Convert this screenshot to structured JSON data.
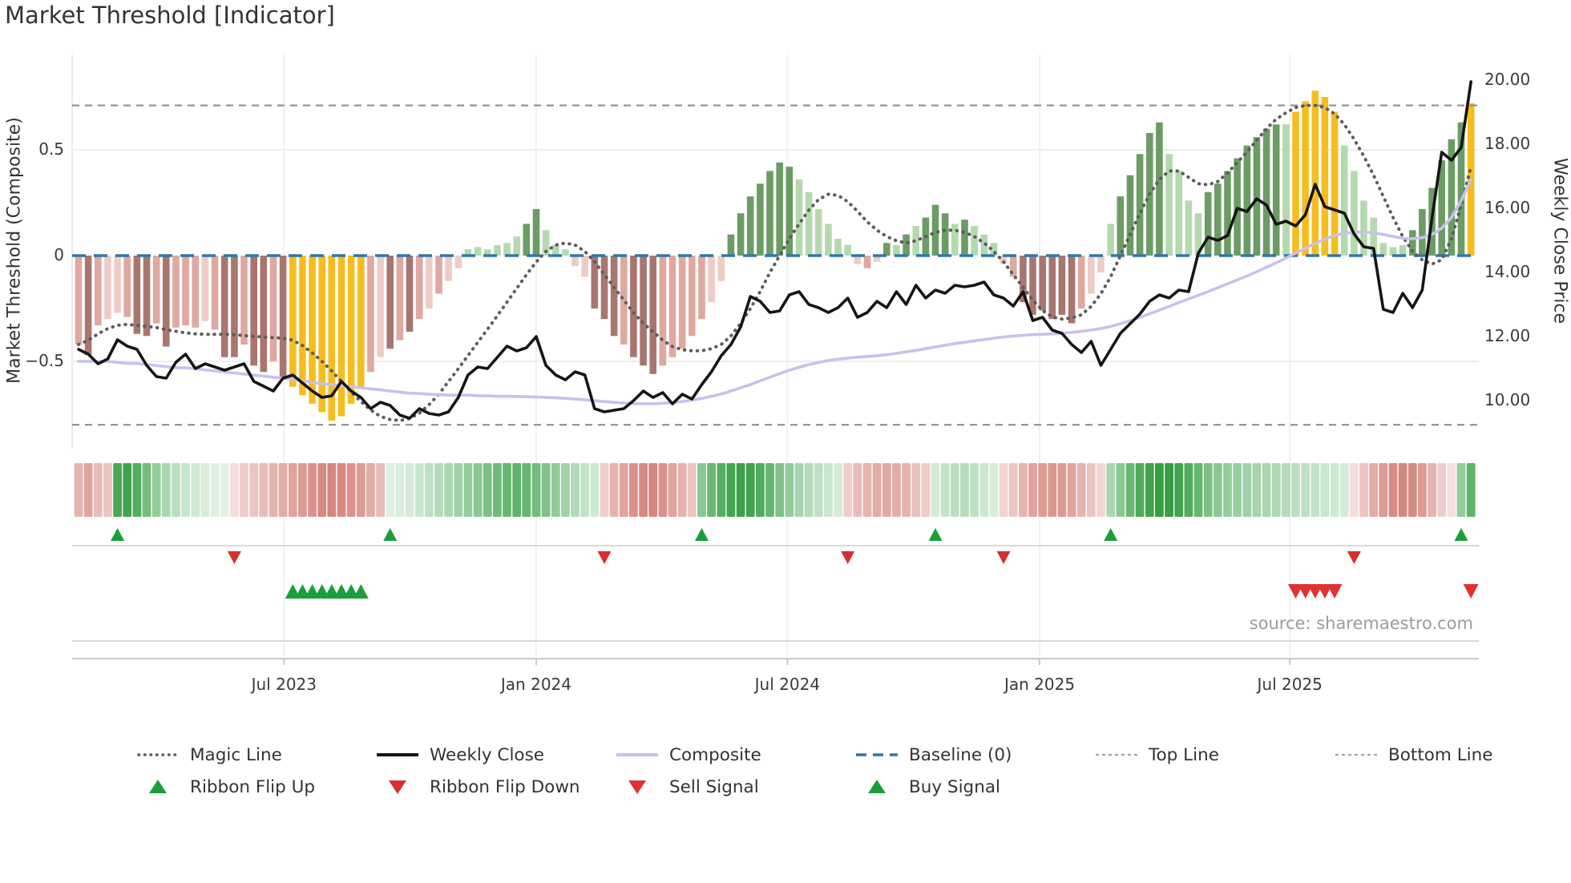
{
  "title": "Market Threshold [Indicator]",
  "source_credit": "source: sharemaestro.com",
  "axes": {
    "left_title": "Market Threshold (Composite)",
    "right_title": "Weekly Close Price",
    "left_ticks": [
      {
        "label": "0.5",
        "v": 0.5
      },
      {
        "label": "0",
        "v": 0.0
      },
      {
        "label": "−0.5",
        "v": -0.5
      }
    ],
    "right_ticks": [
      {
        "label": "20.00",
        "p": 20
      },
      {
        "label": "18.00",
        "p": 18
      },
      {
        "label": "16.00",
        "p": 16
      },
      {
        "label": "14.00",
        "p": 14
      },
      {
        "label": "12.00",
        "p": 12
      },
      {
        "label": "10.00",
        "p": 10
      }
    ]
  },
  "legend": {
    "row1": [
      {
        "label": "Magic Line",
        "swatch": "dotted-gray-line"
      },
      {
        "label": "Weekly Close",
        "swatch": "solid-black-line"
      },
      {
        "label": "Composite",
        "swatch": "solid-lavender-line"
      },
      {
        "label": "Baseline (0)",
        "swatch": "dashed-blue-line"
      },
      {
        "label": "Top Line",
        "swatch": "dashed-gray-line"
      },
      {
        "label": "Bottom Line",
        "swatch": "dashed-gray-line"
      }
    ],
    "row2": [
      {
        "label": "Ribbon Flip Up",
        "swatch": "green-up-triangle"
      },
      {
        "label": "Ribbon Flip Down",
        "swatch": "red-down-triangle"
      },
      {
        "label": "Sell Signal",
        "swatch": "red-down-triangle"
      },
      {
        "label": "Buy Signal",
        "swatch": "green-up-triangle"
      }
    ]
  },
  "chart_data": {
    "type": "bar",
    "weeks": 144,
    "x_ticks": [
      {
        "label": "Jul 2023",
        "i": 21.1
      },
      {
        "label": "Jan 2024",
        "i": 47.0
      },
      {
        "label": "Jul 2024",
        "i": 72.8
      },
      {
        "label": "Jan 2025",
        "i": 98.7
      },
      {
        "label": "Jul 2025",
        "i": 124.4
      }
    ],
    "ylim_left": [
      -0.9,
      0.9
    ],
    "ylim_right": [
      9,
      21
    ],
    "baseline": 0,
    "top_line": 0.71,
    "bottom_line": -0.8,
    "threshold_bars": {
      "values": [
        -0.42,
        -0.47,
        -0.33,
        -0.3,
        -0.27,
        -0.29,
        -0.37,
        -0.38,
        -0.32,
        -0.43,
        -0.34,
        -0.33,
        -0.34,
        -0.31,
        -0.35,
        -0.48,
        -0.48,
        -0.42,
        -0.52,
        -0.55,
        -0.5,
        -0.58,
        -0.62,
        -0.66,
        -0.7,
        -0.74,
        -0.78,
        -0.76,
        -0.7,
        -0.63,
        -0.55,
        -0.48,
        -0.44,
        -0.4,
        -0.36,
        -0.3,
        -0.25,
        -0.18,
        -0.12,
        -0.06,
        0.03,
        0.04,
        0.03,
        0.05,
        0.06,
        0.09,
        0.15,
        0.22,
        0.12,
        0.05,
        0.03,
        -0.05,
        -0.1,
        -0.25,
        -0.3,
        -0.38,
        -0.42,
        -0.48,
        -0.52,
        -0.56,
        -0.52,
        -0.48,
        -0.44,
        -0.38,
        -0.3,
        -0.22,
        -0.12,
        0.1,
        0.2,
        0.28,
        0.34,
        0.4,
        0.44,
        0.42,
        0.36,
        0.3,
        0.22,
        0.15,
        0.08,
        0.05,
        -0.04,
        -0.06,
        -0.03,
        0.06,
        0.05,
        0.1,
        0.14,
        0.18,
        0.24,
        0.2,
        0.15,
        0.17,
        0.14,
        0.1,
        0.06,
        -0.04,
        -0.1,
        -0.22,
        -0.28,
        -0.26,
        -0.3,
        -0.28,
        -0.32,
        -0.25,
        -0.18,
        -0.08,
        0.15,
        0.28,
        0.38,
        0.48,
        0.58,
        0.63,
        0.48,
        0.4,
        0.26,
        0.2,
        0.3,
        0.34,
        0.4,
        0.46,
        0.52,
        0.56,
        0.6,
        0.62,
        0.62,
        0.68,
        0.73,
        0.78,
        0.75,
        0.68,
        0.52,
        0.4,
        0.26,
        0.18,
        0.06,
        0.04,
        0.05,
        0.12,
        0.22,
        0.32,
        0.45,
        0.55,
        0.63,
        0.72
      ],
      "color_codes": [
        "pk",
        "mv",
        "pk",
        "pl",
        "pl",
        "pk",
        "mv",
        "mv",
        "pk",
        "mv",
        "pk",
        "pk",
        "pk",
        "pl",
        "pk",
        "mv",
        "mv",
        "pk",
        "mv",
        "mv",
        "pk",
        "mv",
        "yl",
        "yl",
        "yl",
        "yl",
        "yl",
        "yl",
        "yl",
        "yl",
        "pk",
        "pl",
        "mv",
        "pk",
        "mv",
        "pk",
        "pl",
        "pk",
        "pl",
        "pl",
        "lg",
        "lg",
        "lg",
        "lg",
        "lg",
        "lg",
        "dg",
        "dg",
        "lg",
        "lg",
        "lg",
        "pl",
        "pl",
        "mv",
        "mv",
        "mv",
        "pk",
        "mv",
        "mv",
        "mv",
        "pk",
        "pk",
        "pk",
        "pk",
        "pk",
        "pl",
        "pl",
        "dg",
        "dg",
        "dg",
        "dg",
        "dg",
        "dg",
        "dg",
        "lg",
        "lg",
        "lg",
        "lg",
        "lg",
        "lg",
        "pl",
        "pk",
        "pl",
        "dg",
        "lg",
        "dg",
        "lg",
        "dg",
        "dg",
        "dg",
        "lg",
        "dg",
        "lg",
        "lg",
        "lg",
        "pl",
        "pk",
        "mv",
        "mv",
        "mv",
        "mv",
        "mv",
        "mv",
        "pk",
        "pl",
        "pl",
        "lg",
        "dg",
        "dg",
        "dg",
        "dg",
        "dg",
        "lg",
        "lg",
        "lg",
        "lg",
        "dg",
        "dg",
        "dg",
        "dg",
        "dg",
        "dg",
        "dg",
        "dg",
        "lg",
        "yl",
        "yl",
        "yl",
        "yl",
        "yl",
        "lg",
        "lg",
        "lg",
        "lg",
        "lg",
        "lg",
        "lg",
        "dg",
        "dg",
        "dg",
        "dg",
        "dg",
        "dg",
        "yl"
      ]
    },
    "series": [
      {
        "name": "Weekly Close",
        "axis": "right",
        "values": [
          11.6,
          11.45,
          11.15,
          11.3,
          11.9,
          11.7,
          11.6,
          11.1,
          10.75,
          10.7,
          11.2,
          11.45,
          11.0,
          11.15,
          11.05,
          10.95,
          11.05,
          11.15,
          10.6,
          10.45,
          10.3,
          10.7,
          10.8,
          10.55,
          10.3,
          10.1,
          10.15,
          10.6,
          10.3,
          10.1,
          9.75,
          9.95,
          9.85,
          9.55,
          9.45,
          9.75,
          9.6,
          9.55,
          9.65,
          10.1,
          10.8,
          11.05,
          11.0,
          11.35,
          11.7,
          11.55,
          11.65,
          12.0,
          11.1,
          10.8,
          10.65,
          10.9,
          10.8,
          9.75,
          9.65,
          9.7,
          9.75,
          10.0,
          10.3,
          10.1,
          10.25,
          9.9,
          10.2,
          10.05,
          10.5,
          10.9,
          11.4,
          11.75,
          12.3,
          13.25,
          13.1,
          12.75,
          12.8,
          13.3,
          13.4,
          13.0,
          12.9,
          12.75,
          12.9,
          13.2,
          12.6,
          12.75,
          13.1,
          12.9,
          13.4,
          13.0,
          13.6,
          13.2,
          13.45,
          13.35,
          13.6,
          13.55,
          13.6,
          13.7,
          13.3,
          13.2,
          12.95,
          13.4,
          12.5,
          12.6,
          12.2,
          12.1,
          11.75,
          11.5,
          11.85,
          11.1,
          11.6,
          12.1,
          12.4,
          12.7,
          13.1,
          13.3,
          13.2,
          13.45,
          13.4,
          14.6,
          15.1,
          15.0,
          15.15,
          16.0,
          15.9,
          16.3,
          16.1,
          15.5,
          15.6,
          15.45,
          15.8,
          16.75,
          16.05,
          15.95,
          15.85,
          15.2,
          14.8,
          14.75,
          12.85,
          12.75,
          13.35,
          12.9,
          13.45,
          15.7,
          17.75,
          17.5,
          17.9,
          19.95
        ]
      },
      {
        "name": "Composite",
        "axis": "left",
        "values": [
          -0.5,
          -0.5,
          -0.5,
          -0.5,
          -0.505,
          -0.51,
          -0.51,
          -0.515,
          -0.52,
          -0.525,
          -0.53,
          -0.53,
          -0.535,
          -0.54,
          -0.545,
          -0.55,
          -0.555,
          -0.56,
          -0.565,
          -0.57,
          -0.575,
          -0.58,
          -0.585,
          -0.59,
          -0.6,
          -0.605,
          -0.61,
          -0.615,
          -0.62,
          -0.625,
          -0.63,
          -0.635,
          -0.64,
          -0.645,
          -0.65,
          -0.652,
          -0.655,
          -0.657,
          -0.66,
          -0.66,
          -0.66,
          -0.662,
          -0.663,
          -0.665,
          -0.665,
          -0.666,
          -0.667,
          -0.668,
          -0.67,
          -0.672,
          -0.675,
          -0.678,
          -0.682,
          -0.686,
          -0.69,
          -0.694,
          -0.697,
          -0.7,
          -0.7,
          -0.7,
          -0.698,
          -0.695,
          -0.69,
          -0.683,
          -0.675,
          -0.665,
          -0.655,
          -0.64,
          -0.625,
          -0.61,
          -0.592,
          -0.575,
          -0.558,
          -0.542,
          -0.528,
          -0.515,
          -0.505,
          -0.496,
          -0.49,
          -0.485,
          -0.48,
          -0.477,
          -0.473,
          -0.468,
          -0.462,
          -0.455,
          -0.448,
          -0.44,
          -0.432,
          -0.424,
          -0.416,
          -0.41,
          -0.403,
          -0.397,
          -0.39,
          -0.385,
          -0.38,
          -0.377,
          -0.374,
          -0.372,
          -0.37,
          -0.367,
          -0.363,
          -0.358,
          -0.352,
          -0.345,
          -0.335,
          -0.322,
          -0.308,
          -0.292,
          -0.275,
          -0.258,
          -0.24,
          -0.222,
          -0.205,
          -0.188,
          -0.17,
          -0.152,
          -0.133,
          -0.115,
          -0.096,
          -0.076,
          -0.055,
          -0.034,
          -0.012,
          0.012,
          0.035,
          0.058,
          0.078,
          0.095,
          0.105,
          0.11,
          0.112,
          0.108,
          0.1,
          0.09,
          0.082,
          0.08,
          0.085,
          0.1,
          0.13,
          0.18,
          0.26,
          0.36
        ]
      },
      {
        "name": "Magic Line",
        "axis": "left",
        "values": [
          -0.42,
          -0.4,
          -0.37,
          -0.345,
          -0.33,
          -0.325,
          -0.33,
          -0.335,
          -0.34,
          -0.35,
          -0.358,
          -0.365,
          -0.37,
          -0.372,
          -0.372,
          -0.372,
          -0.374,
          -0.378,
          -0.382,
          -0.385,
          -0.388,
          -0.39,
          -0.4,
          -0.425,
          -0.46,
          -0.5,
          -0.545,
          -0.595,
          -0.645,
          -0.69,
          -0.73,
          -0.76,
          -0.775,
          -0.78,
          -0.77,
          -0.745,
          -0.705,
          -0.655,
          -0.595,
          -0.535,
          -0.472,
          -0.41,
          -0.348,
          -0.285,
          -0.22,
          -0.155,
          -0.09,
          -0.03,
          0.02,
          0.05,
          0.06,
          0.05,
          0.02,
          -0.03,
          -0.09,
          -0.15,
          -0.21,
          -0.27,
          -0.32,
          -0.36,
          -0.4,
          -0.43,
          -0.445,
          -0.45,
          -0.45,
          -0.44,
          -0.42,
          -0.38,
          -0.32,
          -0.25,
          -0.17,
          -0.08,
          0.0,
          0.08,
          0.15,
          0.215,
          0.265,
          0.29,
          0.285,
          0.255,
          0.21,
          0.16,
          0.12,
          0.09,
          0.07,
          0.06,
          0.07,
          0.09,
          0.11,
          0.12,
          0.12,
          0.11,
          0.09,
          0.06,
          0.02,
          -0.03,
          -0.09,
          -0.15,
          -0.21,
          -0.26,
          -0.29,
          -0.3,
          -0.295,
          -0.28,
          -0.24,
          -0.18,
          -0.1,
          0.0,
          0.1,
          0.2,
          0.29,
          0.36,
          0.4,
          0.4,
          0.37,
          0.34,
          0.335,
          0.35,
          0.39,
          0.44,
          0.49,
          0.545,
          0.6,
          0.645,
          0.675,
          0.7,
          0.71,
          0.71,
          0.7,
          0.67,
          0.62,
          0.55,
          0.47,
          0.38,
          0.28,
          0.18,
          0.09,
          0.02,
          -0.02,
          -0.04,
          -0.02,
          0.08,
          0.24,
          0.42
        ]
      }
    ],
    "ribbon": [
      -0.45,
      -0.55,
      -0.4,
      -0.35,
      0.85,
      0.9,
      0.8,
      0.65,
      0.5,
      0.4,
      0.32,
      0.26,
      0.22,
      0.18,
      0.15,
      0.13,
      -0.2,
      -0.3,
      -0.35,
      -0.4,
      -0.45,
      -0.5,
      -0.55,
      -0.6,
      -0.65,
      -0.7,
      -0.72,
      -0.7,
      -0.65,
      -0.6,
      -0.5,
      -0.4,
      0.15,
      0.18,
      0.2,
      0.25,
      0.3,
      0.35,
      0.4,
      0.45,
      0.5,
      0.55,
      0.62,
      0.68,
      0.72,
      0.75,
      0.72,
      0.66,
      0.6,
      0.52,
      0.44,
      0.36,
      0.28,
      0.22,
      -0.3,
      -0.45,
      -0.55,
      -0.65,
      -0.7,
      -0.72,
      -0.65,
      -0.55,
      -0.45,
      -0.35,
      0.55,
      0.7,
      0.8,
      0.88,
      0.92,
      0.9,
      0.82,
      0.72,
      0.6,
      0.5,
      0.42,
      0.35,
      0.3,
      0.25,
      0.2,
      -0.3,
      -0.4,
      -0.45,
      -0.5,
      -0.52,
      -0.5,
      -0.45,
      -0.38,
      -0.3,
      0.2,
      0.28,
      0.32,
      0.34,
      0.3,
      0.24,
      0.18,
      -0.25,
      -0.35,
      -0.45,
      -0.55,
      -0.6,
      -0.62,
      -0.6,
      -0.55,
      -0.45,
      -0.35,
      -0.25,
      0.4,
      0.55,
      0.7,
      0.82,
      0.9,
      0.95,
      0.95,
      0.9,
      0.82,
      0.72,
      0.62,
      0.55,
      0.5,
      0.48,
      0.45,
      0.42,
      0.4,
      0.38,
      0.35,
      0.32,
      0.3,
      0.28,
      0.25,
      0.22,
      0.2,
      -0.2,
      -0.35,
      -0.5,
      -0.6,
      -0.68,
      -0.72,
      -0.7,
      -0.6,
      -0.45,
      -0.3,
      -0.18,
      0.5,
      0.75
    ],
    "signals": {
      "ribbon_flip_up_weeks": [
        4,
        32,
        64,
        88,
        106,
        142
      ],
      "ribbon_flip_down_weeks": [
        16,
        54,
        79,
        95,
        131
      ],
      "buy_signal_weeks": [
        22,
        23,
        24,
        25,
        26,
        27,
        28,
        29
      ],
      "sell_signal_weeks": [
        125,
        126,
        127,
        128,
        129,
        143
      ]
    },
    "colors": {
      "bar_palette": {
        "pl": "#eeccc6",
        "pk": "#dfa8a0",
        "mv": "#a8766f",
        "yl": "#f7bd1e",
        "lg": "#b5d9ae",
        "dg": "#6b9c64"
      },
      "weekly_close": "#151515",
      "composite": "#c8c1ec",
      "magic_line": "#5c5c5c",
      "baseline": "#2c78ad",
      "band_lines": "#8f8f8f",
      "ribbon_green": "#2b9939",
      "ribbon_red": "#c6584e",
      "flip_up": "#1a9e3c",
      "flip_down": "#d62f2f",
      "buy": "#1a9e3c",
      "sell": "#e03131",
      "grid": "#ededf2",
      "axis": "#c9c9c9"
    }
  }
}
